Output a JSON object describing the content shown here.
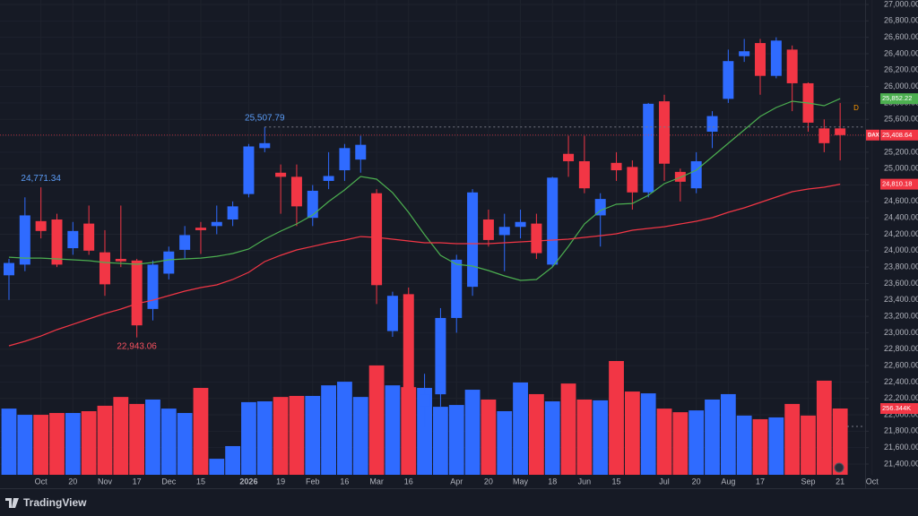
{
  "chart_data": {
    "type": "candlestick",
    "brand": "TradingView",
    "categories": [
      null,
      null,
      "Oct",
      null,
      "20",
      null,
      "Nov",
      null,
      "17",
      null,
      "Dec",
      null,
      "15",
      null,
      null,
      "2026",
      null,
      "19",
      null,
      "Feb",
      null,
      "16",
      null,
      "Mar",
      null,
      "16",
      null,
      null,
      "Apr",
      null,
      "20",
      null,
      "May",
      null,
      "18",
      null,
      "Jun",
      null,
      "15",
      null,
      null,
      "Jul",
      null,
      "20",
      null,
      "Aug",
      null,
      "17",
      null,
      null,
      "Sep",
      null,
      "21",
      null,
      "Oct"
    ],
    "open": [
      23700,
      23830,
      24360,
      24380,
      24030,
      24330,
      23980,
      23900,
      23880,
      23290,
      23720,
      24010,
      24280,
      24300,
      24380,
      24690,
      25250,
      24950,
      24900,
      24400,
      24850,
      24980,
      25110,
      24700,
      23020,
      23470,
      22100,
      22250,
      23180,
      23560,
      24380,
      24190,
      24290,
      24330,
      23830,
      25180,
      25090,
      24430,
      25070,
      25020,
      24710,
      25820,
      24960,
      24760,
      25450,
      25850,
      26370,
      26530,
      26130,
      26450,
      26040,
      25490,
      25490,
      null,
      null
    ],
    "high": [
      23900,
      24650,
      24771.34,
      24450,
      24350,
      24550,
      24250,
      24550,
      23900,
      23880,
      24050,
      24300,
      24350,
      24550,
      24600,
      25300,
      25507.79,
      25050,
      25050,
      24800,
      25200,
      25300,
      25400,
      24750,
      23500,
      23550,
      22500,
      23300,
      23950,
      24750,
      24500,
      24450,
      24500,
      24450,
      24900,
      25400,
      25400,
      24700,
      25200,
      25100,
      25800,
      25900,
      25000,
      25200,
      25700,
      26450,
      26580,
      26580,
      26600,
      26500,
      26050,
      25600,
      25800,
      null,
      null
    ],
    "low": [
      23400,
      23750,
      24150,
      23800,
      23950,
      23950,
      23450,
      23800,
      22943.06,
      23150,
      23650,
      23900,
      23960,
      24200,
      24300,
      24650,
      25200,
      24450,
      24300,
      24300,
      24750,
      24850,
      24950,
      23350,
      22950,
      21800,
      21850,
      22100,
      23000,
      23450,
      24050,
      23750,
      24150,
      23900,
      23800,
      24900,
      24700,
      24050,
      24850,
      24500,
      24650,
      24850,
      24600,
      24700,
      25250,
      25800,
      26300,
      25900,
      26100,
      25700,
      25450,
      25200,
      25100,
      null,
      null
    ],
    "close": [
      23850,
      24430,
      24240,
      23830,
      24240,
      24000,
      23590,
      23870,
      23090,
      23830,
      23990,
      24190,
      24250,
      24350,
      24540,
      25270,
      25310,
      24900,
      24540,
      24730,
      24910,
      25250,
      25290,
      23580,
      23450,
      22100,
      22250,
      23180,
      23890,
      24710,
      24130,
      24290,
      24350,
      23970,
      24890,
      25090,
      24760,
      24630,
      24980,
      24710,
      25790,
      25060,
      24840,
      25090,
      25640,
      26310,
      26430,
      26130,
      26560,
      26040,
      25560,
      25310,
      25408.64,
      null,
      null
    ],
    "volume": [
      256000,
      232000,
      232000,
      239000,
      239000,
      246000,
      267000,
      301000,
      274000,
      291000,
      256000,
      239000,
      336000,
      62000,
      111000,
      281000,
      284000,
      301000,
      305000,
      305000,
      346000,
      360000,
      301000,
      423000,
      346000,
      339000,
      336000,
      263000,
      270000,
      329000,
      291000,
      246000,
      357000,
      312000,
      284000,
      353000,
      291000,
      288000,
      440000,
      322000,
      315000,
      256000,
      242000,
      249000,
      291000,
      312000,
      229000,
      215000,
      222000,
      274000,
      229000,
      364000,
      256344,
      null,
      null
    ],
    "volume_last_label": "256.344K",
    "up_color": "#2f6bff",
    "down_color": "#f23645",
    "ma_series": [
      {
        "color": "#4caf50",
        "last_label": "25,852.22",
        "values": [
          23921,
          23910,
          23910,
          23900,
          23889,
          23878,
          23856,
          23845,
          23834,
          23856,
          23889,
          23900,
          23910,
          23932,
          23965,
          24020,
          24140,
          24238,
          24325,
          24435,
          24598,
          24740,
          24904,
          24871,
          24707,
          24467,
          24194,
          23943,
          23834,
          23812,
          23758,
          23692,
          23638,
          23649,
          23801,
          24052,
          24325,
          24489,
          24566,
          24576,
          24675,
          24817,
          24893,
          24980,
          25144,
          25308,
          25472,
          25635,
          25745,
          25821,
          25799,
          25766,
          25852.22,
          null,
          null
        ]
      },
      {
        "color": "#f23645",
        "last_label": "24,810.18",
        "values": [
          22841,
          22895,
          22960,
          23037,
          23102,
          23168,
          23234,
          23288,
          23354,
          23397,
          23452,
          23507,
          23550,
          23583,
          23649,
          23736,
          23867,
          23943,
          24009,
          24052,
          24096,
          24129,
          24172,
          24162,
          24140,
          24118,
          24096,
          24096,
          24085,
          24085,
          24085,
          24096,
          24107,
          24118,
          24129,
          24140,
          24162,
          24183,
          24205,
          24249,
          24271,
          24292,
          24325,
          24358,
          24402,
          24467,
          24522,
          24587,
          24653,
          24718,
          24751,
          24773,
          24810.18,
          null,
          null
        ]
      }
    ],
    "last_price": {
      "symbol": "DAX",
      "value": 25408.64,
      "label": "25,408.64"
    },
    "annotations": [
      {
        "index": 2,
        "value": 24771.34,
        "label": "24,771.34",
        "position": "above",
        "color": "#5b9cf6"
      },
      {
        "index": 16,
        "value": 25507.79,
        "label": "25,507.79",
        "position": "above",
        "color": "#5b9cf6"
      },
      {
        "index": 8,
        "value": 22943.06,
        "label": "22,943.06",
        "position": "below",
        "color": "#f7525f"
      }
    ],
    "marker": {
      "label": "D",
      "color": "#ff9800"
    },
    "ylim": [
      21400,
      27000
    ],
    "yticks": [
      {
        "value": 21400,
        "label": "21,400.00"
      },
      {
        "value": 21600,
        "label": "21,600.00"
      },
      {
        "value": 21800,
        "label": "21,800.00"
      },
      {
        "value": 22000,
        "label": "22,000.00"
      },
      {
        "value": 22200,
        "label": "22,200.00"
      },
      {
        "value": 22400,
        "label": "22,400.00"
      },
      {
        "value": 22600,
        "label": "22,600.00"
      },
      {
        "value": 22800,
        "label": "22,800.00"
      },
      {
        "value": 23000,
        "label": "23,000.00"
      },
      {
        "value": 23200,
        "label": "23,200.00"
      },
      {
        "value": 23400,
        "label": "23,400.00"
      },
      {
        "value": 23600,
        "label": "23,600.00"
      },
      {
        "value": 23800,
        "label": "23,800.00"
      },
      {
        "value": 24000,
        "label": "24,000.00"
      },
      {
        "value": 24200,
        "label": "24,200.00"
      },
      {
        "value": 24400,
        "label": "24,400.00"
      },
      {
        "value": 24600,
        "label": "24,600.00"
      },
      {
        "value": 24800,
        "label": "24,800.00"
      },
      {
        "value": 25000,
        "label": "25,000.00"
      },
      {
        "value": 25200,
        "label": "25,200.00"
      },
      {
        "value": 25400,
        "label": "25,400.00"
      },
      {
        "value": 25600,
        "label": "25,600.00"
      },
      {
        "value": 25800,
        "label": "25,800.00"
      },
      {
        "value": 26000,
        "label": "26,000.00"
      },
      {
        "value": 26200,
        "label": "26,200.00"
      },
      {
        "value": 26400,
        "label": "26,400.00"
      },
      {
        "value": 26600,
        "label": "26,600.00"
      },
      {
        "value": 26800,
        "label": "26,800.00"
      },
      {
        "value": 27000,
        "label": "27,000.00"
      }
    ],
    "grid": true
  }
}
